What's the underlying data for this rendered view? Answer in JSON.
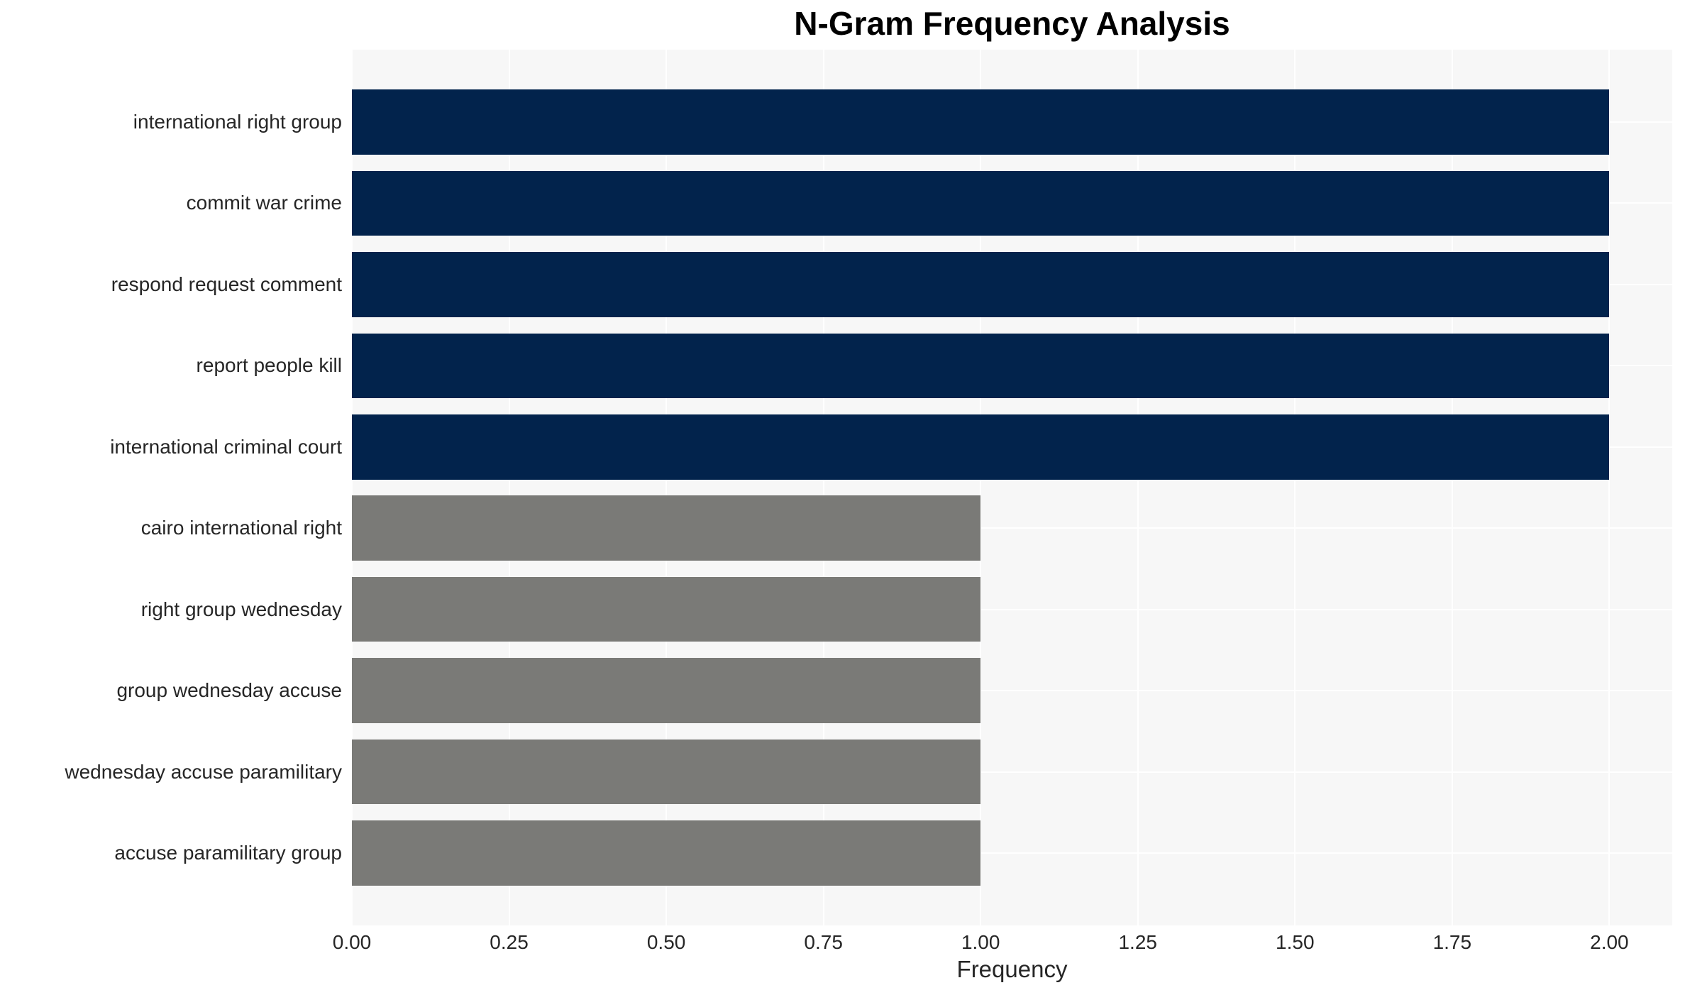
{
  "chart_data": {
    "type": "bar",
    "orientation": "horizontal",
    "title": "N-Gram Frequency Analysis",
    "xlabel": "Frequency",
    "ylabel": "",
    "categories": [
      "international right group",
      "commit war crime",
      "respond request comment",
      "report people kill",
      "international criminal court",
      "cairo international right",
      "right group wednesday",
      "group wednesday accuse",
      "wednesday accuse paramilitary",
      "accuse paramilitary group"
    ],
    "values": [
      2,
      2,
      2,
      2,
      2,
      1,
      1,
      1,
      1,
      1
    ],
    "bar_colors": [
      "#02234c",
      "#02234c",
      "#02234c",
      "#02234c",
      "#02234c",
      "#7a7a77",
      "#7a7a77",
      "#7a7a77",
      "#7a7a77",
      "#7a7a77"
    ],
    "xlim": [
      0,
      2.1
    ],
    "xticks": [
      {
        "value": 0.0,
        "label": "0.00"
      },
      {
        "value": 0.25,
        "label": "0.25"
      },
      {
        "value": 0.5,
        "label": "0.50"
      },
      {
        "value": 0.75,
        "label": "0.75"
      },
      {
        "value": 1.0,
        "label": "1.00"
      },
      {
        "value": 1.25,
        "label": "1.25"
      },
      {
        "value": 1.5,
        "label": "1.50"
      },
      {
        "value": 1.75,
        "label": "1.75"
      },
      {
        "value": 2.0,
        "label": "2.00"
      }
    ],
    "grid": true,
    "legend": false,
    "colors": {
      "plot_bg": "#f7f7f7",
      "grid": "#ffffff",
      "text": "#262626",
      "title": "#000000",
      "bar_high": "#02234c",
      "bar_low": "#7a7a77"
    }
  }
}
